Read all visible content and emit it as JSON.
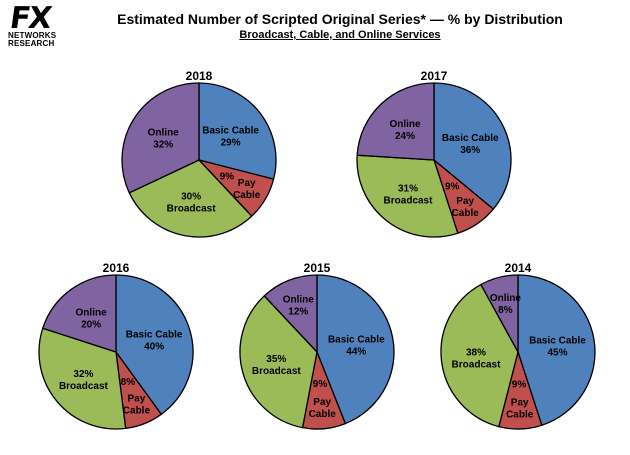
{
  "logo": {
    "mark": "FX",
    "line1": "NETWORKS",
    "line2": "RESEARCH"
  },
  "header": {
    "title": "Estimated Number of Scripted Original Series* — % by Distribution",
    "subtitle": "Broadcast, Cable, and Online Services"
  },
  "colors": {
    "basic_cable": "#4f81bd",
    "pay_cable": "#c0504d",
    "broadcast": "#9bbb59",
    "online": "#8064a2"
  },
  "chart_data": [
    {
      "type": "pie",
      "title": "2018",
      "slices": [
        {
          "label": "Basic Cable",
          "value": 29,
          "display": "29%",
          "color": "#4f81bd"
        },
        {
          "label": "Pay Cable",
          "value": 9,
          "display": "9%",
          "color": "#c0504d"
        },
        {
          "label": "Broadcast",
          "value": 30,
          "display": "30%",
          "color": "#9bbb59"
        },
        {
          "label": "Online",
          "value": 32,
          "display": "32%",
          "color": "#8064a2"
        }
      ]
    },
    {
      "type": "pie",
      "title": "2017",
      "slices": [
        {
          "label": "Basic Cable",
          "value": 36,
          "display": "36%",
          "color": "#4f81bd"
        },
        {
          "label": "Pay Cable",
          "value": 9,
          "display": "9%",
          "color": "#c0504d"
        },
        {
          "label": "Broadcast",
          "value": 31,
          "display": "31%",
          "color": "#9bbb59"
        },
        {
          "label": "Online",
          "value": 24,
          "display": "24%",
          "color": "#8064a2"
        }
      ]
    },
    {
      "type": "pie",
      "title": "2016",
      "slices": [
        {
          "label": "Basic Cable",
          "value": 40,
          "display": "40%",
          "color": "#4f81bd"
        },
        {
          "label": "Pay Cable",
          "value": 8,
          "display": "8%",
          "color": "#c0504d"
        },
        {
          "label": "Broadcast",
          "value": 32,
          "display": "32%",
          "color": "#9bbb59"
        },
        {
          "label": "Online",
          "value": 20,
          "display": "20%",
          "color": "#8064a2"
        }
      ]
    },
    {
      "type": "pie",
      "title": "2015",
      "slices": [
        {
          "label": "Basic Cable",
          "value": 44,
          "display": "44%",
          "color": "#4f81bd"
        },
        {
          "label": "Pay Cable",
          "value": 9,
          "display": "9%",
          "color": "#c0504d"
        },
        {
          "label": "Broadcast",
          "value": 35,
          "display": "35%",
          "color": "#9bbb59"
        },
        {
          "label": "Online",
          "value": 12,
          "display": "12%",
          "color": "#8064a2"
        }
      ]
    },
    {
      "type": "pie",
      "title": "2014",
      "slices": [
        {
          "label": "Basic Cable",
          "value": 45,
          "display": "45%",
          "color": "#4f81bd"
        },
        {
          "label": "Pay Cable",
          "value": 9,
          "display": "9%",
          "color": "#c0504d"
        },
        {
          "label": "Broadcast",
          "value": 38,
          "display": "38%",
          "color": "#9bbb59"
        },
        {
          "label": "Online",
          "value": 8,
          "display": "8%",
          "color": "#8064a2"
        }
      ]
    }
  ]
}
